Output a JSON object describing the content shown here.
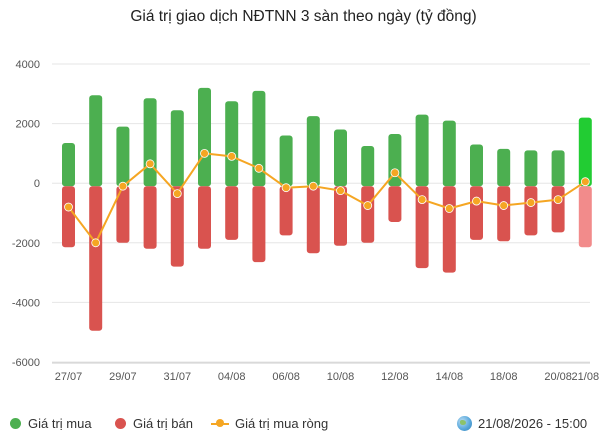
{
  "chart_data": {
    "type": "bar",
    "title": "Giá trị giao dịch NĐTNN 3 sàn theo ngày (tỷ đồng)",
    "ylim": [
      -6000,
      4000
    ],
    "y_ticks": [
      "4000",
      "2000",
      "0",
      "-2000",
      "-4000",
      "-6000"
    ],
    "x_tick_labels": [
      "27/07",
      "29/07",
      "31/07",
      "04/08",
      "06/08",
      "10/08",
      "12/08",
      "14/08",
      "18/08",
      "20/08",
      "21/08"
    ],
    "grid": "horizontal",
    "legend_position": "bottom-left",
    "series": [
      {
        "name": "Giá trị mua",
        "color": "#4caf50",
        "type": "bar",
        "values": [
          1350,
          2950,
          1900,
          2850,
          2450,
          3200,
          2750,
          3100,
          1600,
          2250,
          1800,
          1250,
          1650,
          2300,
          2100,
          1300,
          1150,
          1100,
          1100,
          2200
        ]
      },
      {
        "name": "Giá trị bán",
        "color": "#d9534f",
        "type": "bar",
        "values": [
          -2150,
          -4950,
          -2000,
          -2200,
          -2800,
          -2200,
          -1900,
          -2650,
          -1750,
          -2350,
          -2100,
          -2000,
          -1300,
          -2850,
          -3000,
          -1900,
          -1950,
          -1750,
          -1650,
          -2150
        ]
      },
      {
        "name": "Giá trị mua ròng",
        "color": "#f5a623",
        "type": "line",
        "values": [
          -800,
          -2000,
          -100,
          650,
          -350,
          1000,
          900,
          500,
          -150,
          -100,
          -250,
          -750,
          350,
          -550,
          -850,
          -600,
          -750,
          -650,
          -550,
          50
        ]
      }
    ]
  },
  "timestamp": "21/08/2026 - 15:00"
}
